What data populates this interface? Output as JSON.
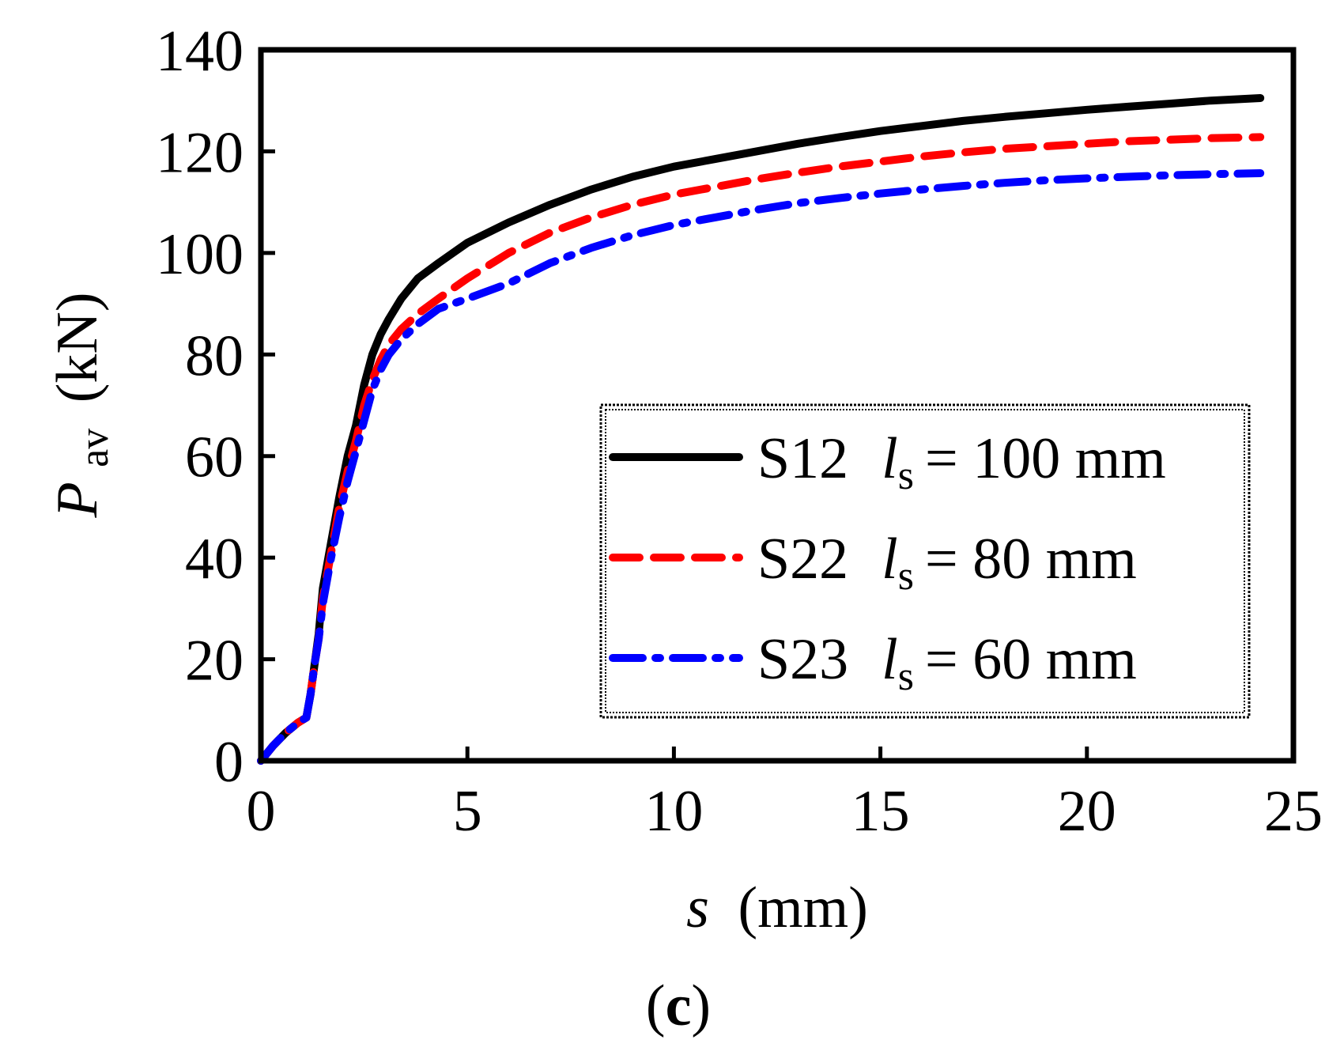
{
  "chart_data": {
    "type": "line",
    "panel_label": {
      "open": "(",
      "letter": "c",
      "close": ")"
    },
    "xlabel": {
      "symbol": "s",
      "unit": "(mm)"
    },
    "ylabel": {
      "symbol": "P",
      "subscript": "av",
      "unit": "(kN)"
    },
    "xlim": [
      0,
      25
    ],
    "ylim": [
      0,
      140
    ],
    "xticks": [
      0,
      5,
      10,
      15,
      20,
      25
    ],
    "yticks": [
      0,
      20,
      40,
      60,
      80,
      100,
      120,
      140
    ],
    "grid": false,
    "legend_position": "bottom-right",
    "series": [
      {
        "name": "S12",
        "symbol": "l",
        "subscript": "s",
        "value_text": "= 100 mm",
        "color": "#000000",
        "style": "solid",
        "x": [
          0,
          0.3,
          0.6,
          0.9,
          1.1,
          1.2,
          1.3,
          1.4,
          1.5,
          1.7,
          1.9,
          2.1,
          2.3,
          2.5,
          2.7,
          2.9,
          3.1,
          3.4,
          3.8,
          4.3,
          5.0,
          6.0,
          7.0,
          8.0,
          9.0,
          10.0,
          11.0,
          12.0,
          13.0,
          14.0,
          15.0,
          16.0,
          17.0,
          18.0,
          19.0,
          20.0,
          21.0,
          22.0,
          23.0,
          24.2
        ],
        "y": [
          0,
          3,
          5.5,
          7.5,
          8.5,
          13,
          19,
          25,
          34,
          43,
          52,
          60,
          66,
          74,
          80,
          84,
          87,
          91,
          95,
          98,
          102,
          106,
          109.5,
          112.5,
          115,
          117,
          118.5,
          120,
          121.5,
          122.8,
          124,
          125,
          126,
          126.8,
          127.5,
          128.2,
          128.8,
          129.4,
          130,
          130.5
        ]
      },
      {
        "name": "S22",
        "symbol": "l",
        "subscript": "s",
        "value_text": "= 80 mm",
        "color": "#ff0000",
        "style": "dashed",
        "x": [
          0,
          0.3,
          0.6,
          0.9,
          1.1,
          1.2,
          1.3,
          1.4,
          1.5,
          1.7,
          1.9,
          2.1,
          2.3,
          2.5,
          2.7,
          2.9,
          3.1,
          3.4,
          3.8,
          4.3,
          5.0,
          6.0,
          7.0,
          8.0,
          9.0,
          10.0,
          11.0,
          12.0,
          13.0,
          14.0,
          15.0,
          16.0,
          17.0,
          18.0,
          19.0,
          20.0,
          21.0,
          22.0,
          23.0,
          24.2
        ],
        "y": [
          0,
          3,
          5.5,
          7.5,
          8.5,
          13,
          19,
          24,
          32,
          41,
          50,
          57,
          63,
          70,
          75,
          79,
          82,
          85,
          88,
          91,
          95,
          100,
          104,
          107,
          109.5,
          111.5,
          113,
          114.5,
          115.8,
          117,
          118,
          119,
          119.8,
          120.5,
          121,
          121.5,
          122,
          122.3,
          122.6,
          122.8
        ]
      },
      {
        "name": "S23",
        "symbol": "l",
        "subscript": "s",
        "value_text": "= 60 mm",
        "color": "#0000ff",
        "style": "dashdot",
        "x": [
          0,
          0.3,
          0.6,
          0.9,
          1.1,
          1.2,
          1.3,
          1.4,
          1.5,
          1.7,
          1.9,
          2.1,
          2.3,
          2.5,
          2.7,
          2.9,
          3.1,
          3.4,
          3.8,
          4.3,
          5.0,
          6.0,
          7.0,
          8.0,
          9.0,
          10.0,
          11.0,
          12.0,
          13.0,
          14.0,
          15.0,
          16.0,
          17.0,
          18.0,
          19.0,
          20.0,
          21.0,
          22.0,
          23.0,
          24.2
        ],
        "y": [
          0,
          3,
          5.5,
          7.5,
          8.5,
          13,
          19,
          24,
          31,
          40,
          48,
          55,
          61,
          67,
          73,
          77,
          80,
          83,
          86,
          89,
          91,
          94,
          98,
          101,
          103.5,
          105.5,
          107,
          108.5,
          109.8,
          110.8,
          111.7,
          112.5,
          113.2,
          113.8,
          114.3,
          114.7,
          115,
          115.3,
          115.5,
          115.7
        ]
      }
    ]
  }
}
